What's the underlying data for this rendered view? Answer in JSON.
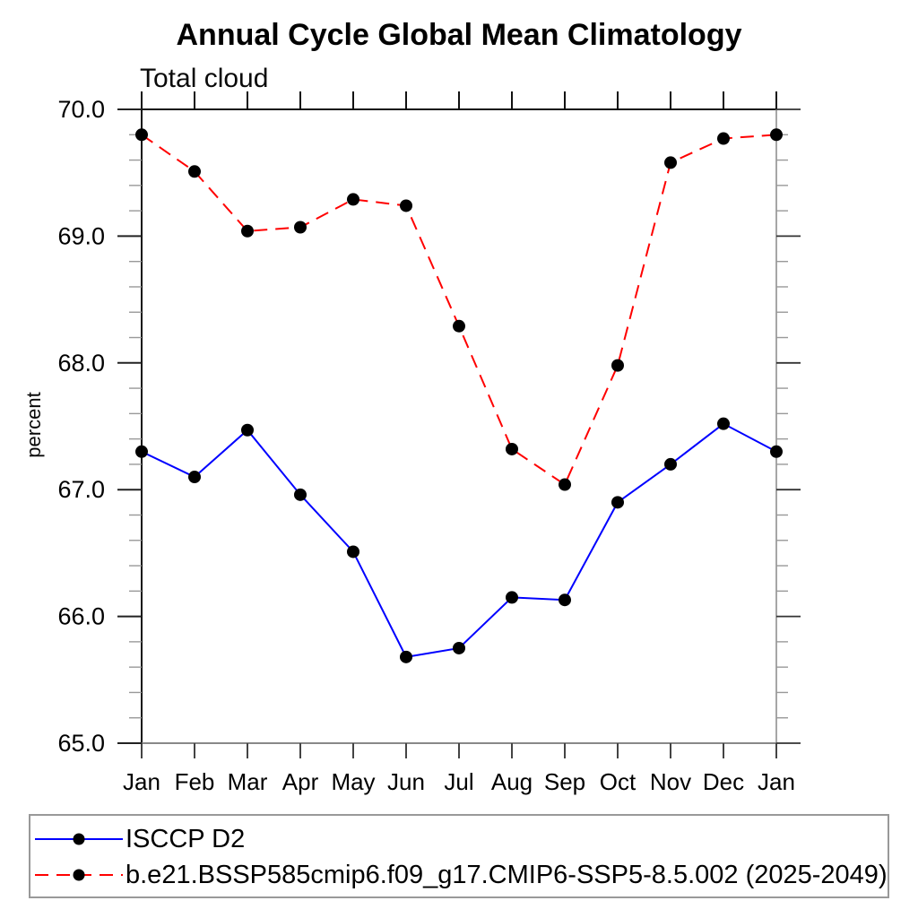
{
  "chart_data": {
    "type": "line",
    "title": "Annual Cycle Global Mean Climatology",
    "subtitle": "Total cloud",
    "ylabel": "percent",
    "xlabel": "",
    "categories": [
      "Jan",
      "Feb",
      "Mar",
      "Apr",
      "May",
      "Jun",
      "Jul",
      "Aug",
      "Sep",
      "Oct",
      "Nov",
      "Dec",
      "Jan"
    ],
    "ylim": [
      65.0,
      70.0
    ],
    "ytick_labels": [
      "65.0",
      "66.0",
      "67.0",
      "68.0",
      "69.0",
      "70.0"
    ],
    "ytick_interval": 1.0,
    "yminor_interval": 0.2,
    "grid": false,
    "legend_position": "bottom-left",
    "frame_color": "#111111",
    "series": [
      {
        "name": "ISCCP D2",
        "color": "#0000ff",
        "line_style": "solid",
        "marker": "filled-circle",
        "marker_color": "#000000",
        "values": [
          67.3,
          67.1,
          67.47,
          66.96,
          66.51,
          65.68,
          65.75,
          66.15,
          66.13,
          66.9,
          67.2,
          67.52,
          67.3
        ]
      },
      {
        "name": "b.e21.BSSP585cmip6.f09_g17.CMIP6-SSP5-8.5.002 (2025-2049)",
        "color": "#ff0000",
        "line_style": "dashed",
        "marker": "filled-circle",
        "marker_color": "#000000",
        "values": [
          69.8,
          69.51,
          69.04,
          69.07,
          69.29,
          69.24,
          68.29,
          67.32,
          67.04,
          67.98,
          69.58,
          69.77,
          69.8
        ]
      }
    ]
  }
}
